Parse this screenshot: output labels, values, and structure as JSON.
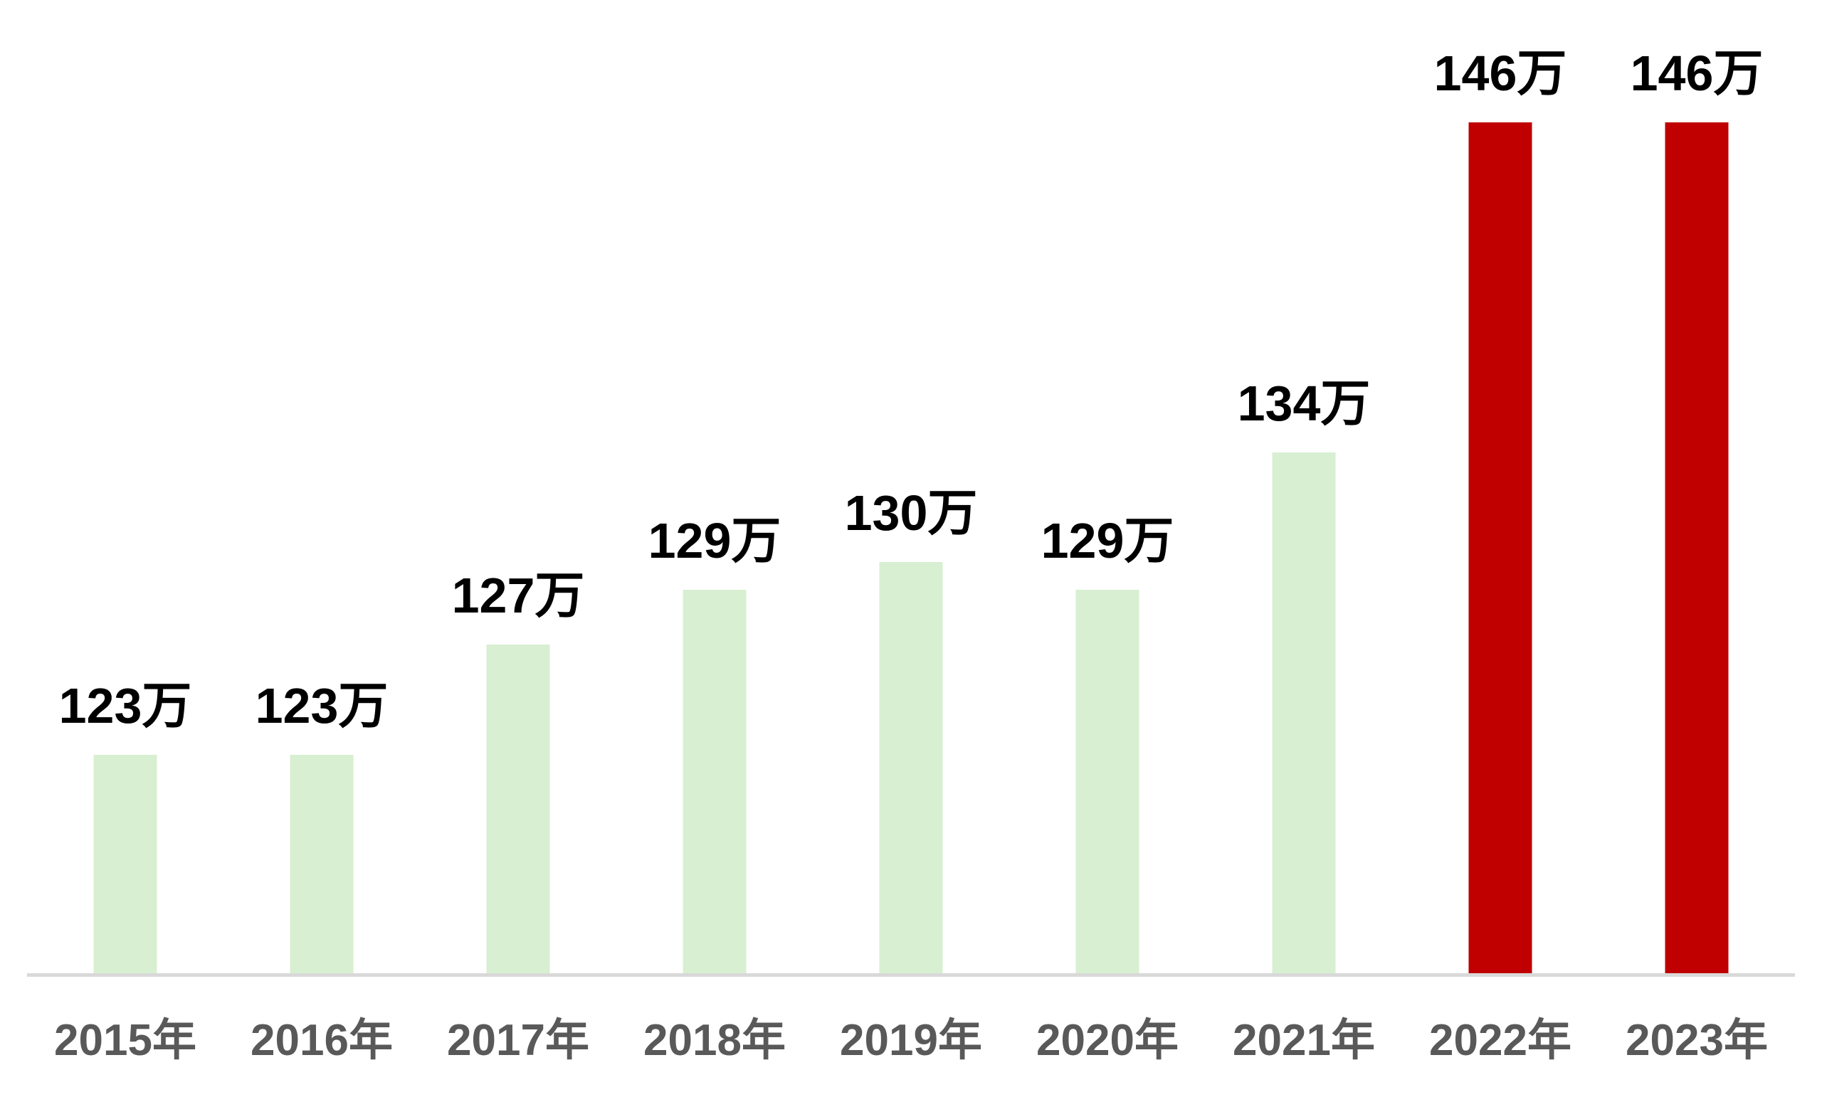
{
  "chart_data": {
    "type": "bar",
    "title": "",
    "xlabel": "",
    "ylabel": "",
    "categories": [
      "2015年",
      "2016年",
      "2017年",
      "2018年",
      "2019年",
      "2020年",
      "2021年",
      "2022年",
      "2023年"
    ],
    "values": [
      123,
      123,
      127,
      129,
      130,
      129,
      134,
      146,
      146
    ],
    "value_labels": [
      "123万",
      "123万",
      "127万",
      "129万",
      "130万",
      "129万",
      "134万",
      "146万",
      "146万"
    ],
    "unit": "万",
    "ylim": [
      115,
      150
    ],
    "grid": false,
    "legend": "none",
    "y_axis_visible": false,
    "highlighted_categories": [
      "2022年",
      "2023年"
    ],
    "bar_colors": [
      "#d8efd2",
      "#d8efd2",
      "#d8efd2",
      "#d8efd2",
      "#d8efd2",
      "#d8efd2",
      "#d8efd2",
      "#c00000",
      "#c00000"
    ],
    "colors": {
      "bar_default": "#d8efd2",
      "bar_highlight": "#c00000",
      "axis_line": "#d9d9d9",
      "value_label": "#000000",
      "category_label": "#595959",
      "background": "#ffffff"
    }
  }
}
